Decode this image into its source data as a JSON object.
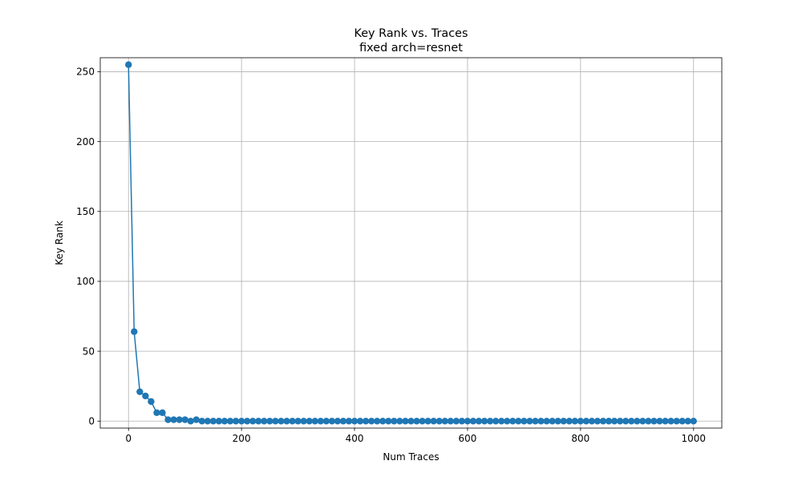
{
  "chart_data": {
    "type": "line",
    "title": "Key Rank vs. Traces",
    "subtitle": "fixed arch=resnet",
    "xlabel": "Num Traces",
    "ylabel": "Key Rank",
    "xlim": [
      -50,
      1050
    ],
    "ylim": [
      -5,
      260
    ],
    "xticks": [
      0,
      200,
      400,
      600,
      800,
      1000
    ],
    "xtick_labels": [
      "0",
      "200",
      "400",
      "600",
      "800",
      "1000"
    ],
    "yticks": [
      0,
      50,
      100,
      150,
      200,
      250
    ],
    "ytick_labels": [
      "0",
      "50",
      "100",
      "150",
      "200",
      "250"
    ],
    "grid": true,
    "marker": "circle",
    "colors": {
      "series": "#1f77b4",
      "grid": "#b0b0b0",
      "axes": "#000000"
    },
    "series": [
      {
        "x": [
          0,
          10,
          20,
          30,
          40,
          50,
          60,
          70,
          80,
          90,
          100,
          110,
          120,
          130,
          140,
          150,
          160,
          170,
          180,
          190,
          200,
          210,
          220,
          230,
          240,
          250,
          260,
          270,
          280,
          290,
          300,
          310,
          320,
          330,
          340,
          350,
          360,
          370,
          380,
          390,
          400,
          410,
          420,
          430,
          440,
          450,
          460,
          470,
          480,
          490,
          500,
          510,
          520,
          530,
          540,
          550,
          560,
          570,
          580,
          590,
          600,
          610,
          620,
          630,
          640,
          650,
          660,
          670,
          680,
          690,
          700,
          710,
          720,
          730,
          740,
          750,
          760,
          770,
          780,
          790,
          800,
          810,
          820,
          830,
          840,
          850,
          860,
          870,
          880,
          890,
          900,
          910,
          920,
          930,
          940,
          950,
          960,
          970,
          980,
          990,
          1000
        ],
        "y": [
          255,
          64,
          21,
          18,
          14,
          6,
          6,
          1,
          1,
          1,
          1,
          0,
          1,
          0,
          0,
          0,
          0,
          0,
          0,
          0,
          0,
          0,
          0,
          0,
          0,
          0,
          0,
          0,
          0,
          0,
          0,
          0,
          0,
          0,
          0,
          0,
          0,
          0,
          0,
          0,
          0,
          0,
          0,
          0,
          0,
          0,
          0,
          0,
          0,
          0,
          0,
          0,
          0,
          0,
          0,
          0,
          0,
          0,
          0,
          0,
          0,
          0,
          0,
          0,
          0,
          0,
          0,
          0,
          0,
          0,
          0,
          0,
          0,
          0,
          0,
          0,
          0,
          0,
          0,
          0,
          0,
          0,
          0,
          0,
          0,
          0,
          0,
          0,
          0,
          0,
          0,
          0,
          0,
          0,
          0,
          0,
          0,
          0,
          0,
          0,
          0
        ]
      }
    ]
  }
}
